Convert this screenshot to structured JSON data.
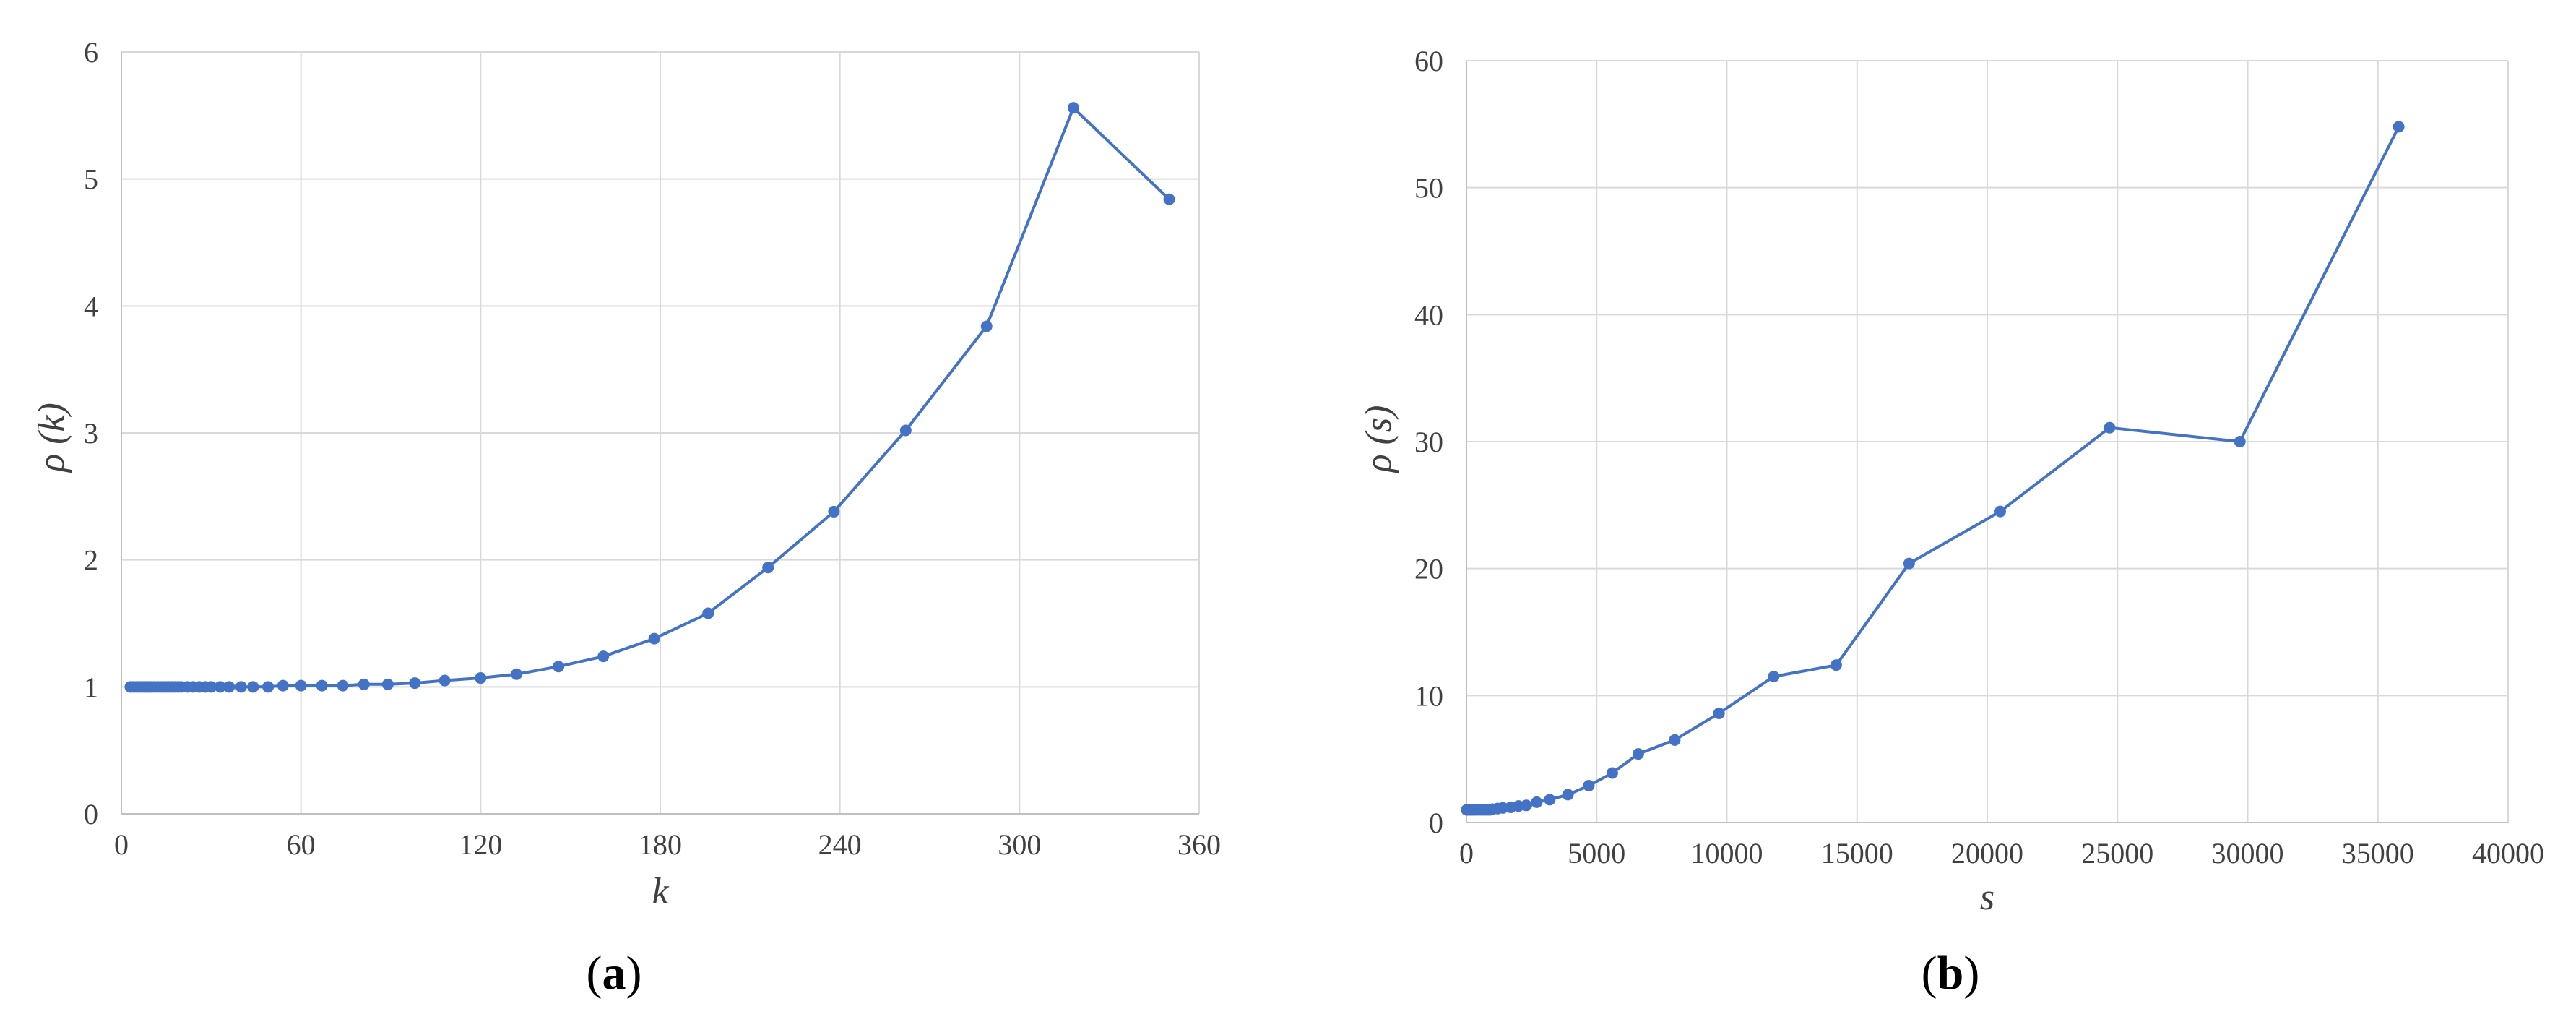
{
  "colors": {
    "series": "#4472C4",
    "grid": "#D9D9D9",
    "axis": "#BFBFBF",
    "text": "#404040"
  },
  "chart_data": [
    {
      "type": "line",
      "caption": "a",
      "xlabel": "k",
      "ylabel": "ρ (k)",
      "xlim": [
        0,
        360
      ],
      "ylim": [
        0,
        6
      ],
      "xticks": [
        0,
        60,
        120,
        180,
        240,
        300,
        360
      ],
      "yticks": [
        0,
        1,
        2,
        3,
        4,
        5,
        6
      ],
      "grid": true,
      "legend": "none",
      "series": [
        {
          "x": [
            3,
            4,
            5,
            6,
            7,
            8,
            9,
            10,
            11,
            12,
            13,
            14,
            15,
            16,
            17,
            18,
            19,
            20,
            22,
            24,
            26,
            28,
            30,
            33,
            36,
            40,
            44,
            49,
            54,
            60,
            67,
            74,
            81,
            89,
            98,
            108,
            120,
            132,
            146,
            161,
            178,
            196,
            216,
            238,
            262,
            289,
            318,
            350
          ],
          "y": [
            1.0,
            1.0,
            1.0,
            1.0,
            1.0,
            1.0,
            1.0,
            1.0,
            1.0,
            1.0,
            1.0,
            1.0,
            1.0,
            1.0,
            1.0,
            1.0,
            1.0,
            1.0,
            1.0,
            1.0,
            1.0,
            1.0,
            1.0,
            1.0,
            1.0,
            1.0,
            1.0,
            1.0,
            1.01,
            1.01,
            1.01,
            1.01,
            1.02,
            1.02,
            1.03,
            1.05,
            1.07,
            1.1,
            1.16,
            1.24,
            1.38,
            1.58,
            1.94,
            2.38,
            3.02,
            3.84,
            5.56,
            4.84
          ]
        }
      ]
    },
    {
      "type": "line",
      "caption": "b",
      "xlabel": "s",
      "ylabel": "ρ (s)",
      "xlim": [
        0,
        40000
      ],
      "ylim": [
        0,
        60
      ],
      "xticks": [
        0,
        5000,
        10000,
        15000,
        20000,
        25000,
        30000,
        35000,
        40000
      ],
      "yticks": [
        0,
        10,
        20,
        30,
        40,
        50,
        60
      ],
      "grid": true,
      "legend": "none",
      "series": [
        {
          "x": [
            10,
            50,
            100,
            150,
            200,
            250,
            300,
            400,
            500,
            600,
            700,
            800,
            900,
            1000,
            1200,
            1400,
            1700,
            2000,
            2300,
            2700,
            3200,
            3900,
            4700,
            5600,
            6600,
            8000,
            9700,
            11800,
            14200,
            17000,
            20500,
            24700,
            29700,
            35800
          ],
          "y": [
            1.0,
            1.0,
            1.0,
            1.0,
            1.0,
            1.0,
            1.0,
            1.0,
            1.0,
            1.0,
            1.0,
            1.0,
            1.0,
            1.05,
            1.1,
            1.15,
            1.2,
            1.3,
            1.35,
            1.6,
            1.8,
            2.2,
            2.9,
            3.9,
            5.4,
            6.5,
            8.6,
            11.5,
            12.4,
            20.4,
            24.5,
            31.1,
            30.0,
            54.8
          ]
        }
      ]
    }
  ]
}
